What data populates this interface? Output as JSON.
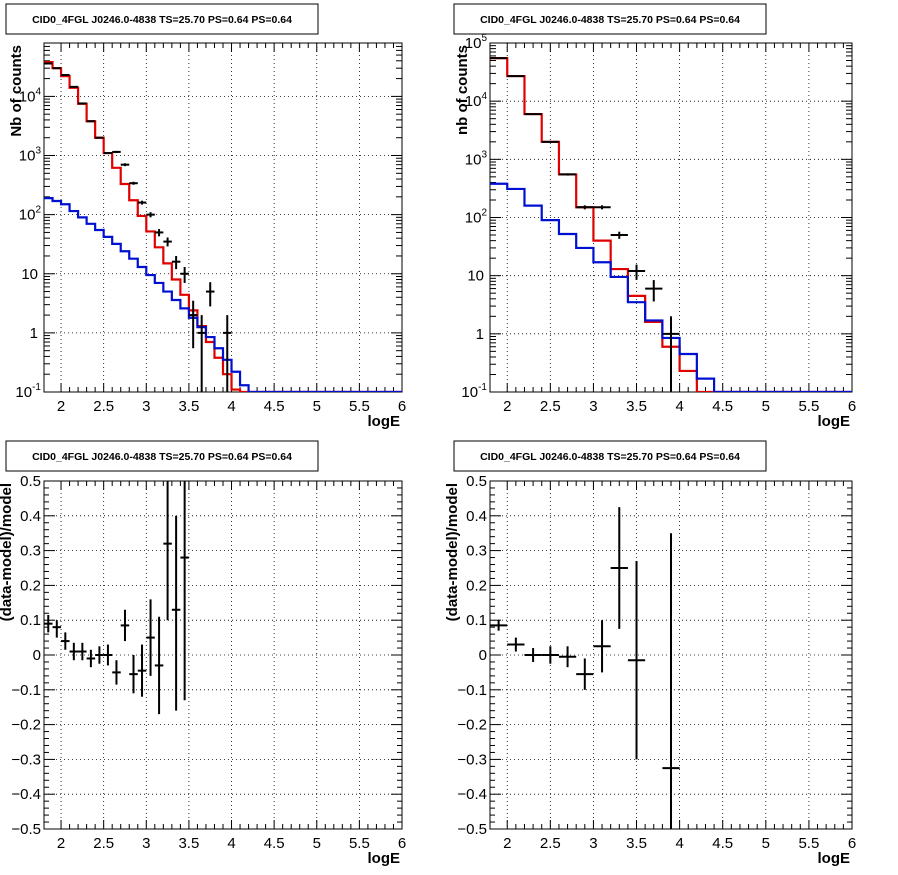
{
  "page": {
    "background": "#ffffff"
  },
  "colors": {
    "data": "#000000",
    "total_model": "#e00000",
    "source_model": "#0010d0",
    "grid": "#000000"
  },
  "chart_data": [
    {
      "id": "counts-left",
      "type": "step-histogram",
      "title": "CID0_4FGL J0246.0-4838 TS=25.70 PS=0.64 PS=0.64",
      "xlabel": "logE",
      "ylabel": "Nb of counts",
      "xlim": [
        1.8,
        6.0
      ],
      "ylim": [
        0.1,
        80000
      ],
      "log_y": true,
      "grid": true,
      "x_ticks": [
        "2",
        "2.5",
        "3",
        "3.5",
        "4",
        "4.5",
        "5",
        "5.5",
        "6"
      ],
      "y_ticks": [
        "10^-1",
        "1",
        "10",
        "10^2",
        "10^3",
        "10^4"
      ],
      "bin_edges": [
        1.8,
        1.9,
        2.0,
        2.1,
        2.2,
        2.3,
        2.4,
        2.5,
        2.6,
        2.7,
        2.8,
        2.9,
        3.0,
        3.1,
        3.2,
        3.3,
        3.4,
        3.5,
        3.6,
        3.7,
        3.8,
        3.9,
        4.0,
        4.1,
        4.2,
        4.3,
        4.4,
        4.5,
        4.6,
        4.7,
        4.8,
        4.9,
        5.0,
        5.1,
        5.2,
        5.3,
        5.4,
        5.5,
        5.6,
        5.7,
        5.8,
        5.9,
        6.0
      ],
      "series": [
        {
          "role": "total_model",
          "color": "#e00000",
          "values": [
            38000,
            30000,
            22000,
            14000,
            7500,
            3800,
            2000,
            1100,
            620,
            330,
            175,
            95,
            52,
            28,
            15,
            8,
            4.4,
            2.4,
            1.3,
            0.7,
            0.38,
            0.2,
            0.11,
            0.1,
            0.1,
            0.1,
            0.1,
            0.1,
            0.1,
            0.1,
            0.1,
            0.1,
            0.1,
            0.1,
            0.1,
            0.1,
            0.1,
            0.1,
            0.1,
            0.1,
            0.1,
            0.1
          ]
        },
        {
          "role": "source_model",
          "color": "#0010d0",
          "values": [
            190,
            170,
            150,
            115,
            90,
            70,
            55,
            42,
            32,
            24,
            18,
            13,
            9.5,
            7,
            5,
            3.6,
            2.6,
            1.8,
            1.25,
            0.85,
            0.55,
            0.35,
            0.22,
            0.13,
            0.1,
            0.1,
            0.1,
            0.1,
            0.1,
            0.1,
            0.1,
            0.1,
            0.1,
            0.1,
            0.1,
            0.1,
            0.1,
            0.1,
            0.1,
            0.1,
            0.1,
            0.1
          ]
        }
      ],
      "points": [
        {
          "x": 1.85,
          "y": 36000,
          "ylo": 35500,
          "yhi": 36500,
          "xerr": 0.05
        },
        {
          "x": 1.95,
          "y": 30000,
          "ylo": 29600,
          "yhi": 30400,
          "xerr": 0.05
        },
        {
          "x": 2.05,
          "y": 23000,
          "ylo": 22600,
          "yhi": 23400,
          "xerr": 0.05
        },
        {
          "x": 2.15,
          "y": 14500,
          "ylo": 14200,
          "yhi": 14800,
          "xerr": 0.05
        },
        {
          "x": 2.25,
          "y": 7600,
          "ylo": 7400,
          "yhi": 7800,
          "xerr": 0.05
        },
        {
          "x": 2.35,
          "y": 3800,
          "ylo": 3700,
          "yhi": 3900,
          "xerr": 0.05
        },
        {
          "x": 2.45,
          "y": 2000,
          "ylo": 1950,
          "yhi": 2050,
          "xerr": 0.05
        },
        {
          "x": 2.55,
          "y": 1100,
          "ylo": 1060,
          "yhi": 1140,
          "xerr": 0.05
        },
        {
          "x": 2.65,
          "y": 1150,
          "ylo": 1100,
          "yhi": 1200,
          "xerr": 0.05
        },
        {
          "x": 2.75,
          "y": 700,
          "ylo": 660,
          "yhi": 740,
          "xerr": 0.05
        },
        {
          "x": 2.85,
          "y": 340,
          "ylo": 320,
          "yhi": 360,
          "xerr": 0.05
        },
        {
          "x": 2.95,
          "y": 160,
          "ylo": 148,
          "yhi": 172,
          "xerr": 0.05
        },
        {
          "x": 3.05,
          "y": 100,
          "ylo": 90,
          "yhi": 110,
          "xerr": 0.05
        },
        {
          "x": 3.15,
          "y": 50,
          "ylo": 43,
          "yhi": 57,
          "xerr": 0.05
        },
        {
          "x": 3.25,
          "y": 35,
          "ylo": 29,
          "yhi": 41,
          "xerr": 0.05
        },
        {
          "x": 3.35,
          "y": 16,
          "ylo": 12,
          "yhi": 20,
          "xerr": 0.05
        },
        {
          "x": 3.45,
          "y": 10,
          "ylo": 7,
          "yhi": 13,
          "xerr": 0.05
        },
        {
          "x": 3.55,
          "y": 2,
          "ylo": 0.55,
          "yhi": 3.5,
          "xerr": 0.05
        },
        {
          "x": 3.65,
          "y": 1,
          "ylo": 0.1,
          "yhi": 2,
          "xerr": 0.05
        },
        {
          "x": 3.75,
          "y": 5,
          "ylo": 2.8,
          "yhi": 7.2,
          "xerr": 0.05
        },
        {
          "x": 3.95,
          "y": 1,
          "ylo": 0.1,
          "yhi": 2,
          "xerr": 0.05
        }
      ]
    },
    {
      "id": "counts-right",
      "type": "step-histogram",
      "title": "CID0_4FGL J0246.0-4838 TS=25.70 PS=0.64 PS=0.64",
      "xlabel": "logE",
      "ylabel": "nb of counts",
      "xlim": [
        1.8,
        6.0
      ],
      "ylim": [
        0.1,
        100000
      ],
      "log_y": true,
      "grid": true,
      "x_ticks": [
        "2",
        "2.5",
        "3",
        "3.5",
        "4",
        "4.5",
        "5",
        "5.5",
        "6"
      ],
      "y_ticks": [
        "10^-1",
        "1",
        "10",
        "10^2",
        "10^3",
        "10^4",
        "10^5"
      ],
      "bin_edges": [
        1.8,
        2.0,
        2.2,
        2.4,
        2.6,
        2.8,
        3.0,
        3.2,
        3.4,
        3.6,
        3.8,
        4.0,
        4.2,
        4.4,
        4.6,
        4.8,
        5.0,
        5.2,
        5.4,
        5.6,
        5.8,
        6.0
      ],
      "series": [
        {
          "role": "total_model",
          "color": "#e00000",
          "values": [
            55000,
            27000,
            6000,
            2000,
            550,
            150,
            40,
            13,
            4.5,
            1.6,
            0.6,
            0.23,
            0.1,
            0.1,
            0.1,
            0.1,
            0.1,
            0.1,
            0.1,
            0.1,
            0.1
          ]
        },
        {
          "role": "source_model",
          "color": "#0010d0",
          "values": [
            380,
            310,
            160,
            90,
            52,
            30,
            17,
            9.5,
            3.5,
            1.7,
            0.85,
            0.45,
            0.17,
            0.1,
            0.1,
            0.1,
            0.1,
            0.1,
            0.1,
            0.1,
            0.1
          ]
        }
      ],
      "points": [
        {
          "x": 1.9,
          "y": 55000,
          "ylo": 54500,
          "yhi": 55500,
          "xerr": 0.1
        },
        {
          "x": 2.1,
          "y": 27000,
          "ylo": 26700,
          "yhi": 27300,
          "xerr": 0.1
        },
        {
          "x": 2.3,
          "y": 6000,
          "ylo": 5900,
          "yhi": 6100,
          "xerr": 0.1
        },
        {
          "x": 2.5,
          "y": 2000,
          "ylo": 1950,
          "yhi": 2050,
          "xerr": 0.1
        },
        {
          "x": 2.7,
          "y": 550,
          "ylo": 525,
          "yhi": 575,
          "xerr": 0.1
        },
        {
          "x": 2.9,
          "y": 150,
          "ylo": 138,
          "yhi": 162,
          "xerr": 0.1
        },
        {
          "x": 3.1,
          "y": 150,
          "ylo": 138,
          "yhi": 162,
          "xerr": 0.1
        },
        {
          "x": 3.3,
          "y": 50,
          "ylo": 43,
          "yhi": 57,
          "xerr": 0.1
        },
        {
          "x": 3.5,
          "y": 12,
          "ylo": 8.5,
          "yhi": 15.5,
          "xerr": 0.1
        },
        {
          "x": 3.7,
          "y": 6,
          "ylo": 3.6,
          "yhi": 8.4,
          "xerr": 0.1
        },
        {
          "x": 3.9,
          "y": 1,
          "ylo": 0.1,
          "yhi": 2,
          "xerr": 0.1
        }
      ]
    },
    {
      "id": "residuals-left",
      "type": "scatter-errorbars",
      "title": "CID0_4FGL J0246.0-4838 TS=25.70 PS=0.64 PS=0.64",
      "xlabel": "logE",
      "ylabel": "(data-model)/model",
      "xlim": [
        1.8,
        6.0
      ],
      "ylim": [
        -0.5,
        0.5
      ],
      "grid": true,
      "x_ticks": [
        "2",
        "2.5",
        "3",
        "3.5",
        "4",
        "4.5",
        "5",
        "5.5",
        "6"
      ],
      "y_ticks": [
        "−0.5",
        "−0.4",
        "−0.3",
        "−0.2",
        "−0.1",
        "0",
        "0.1",
        "0.2",
        "0.3",
        "0.4",
        "0.5"
      ],
      "points": [
        {
          "x": 1.85,
          "y": 0.09,
          "ylo": 0.065,
          "yhi": 0.115,
          "xerr": 0.05
        },
        {
          "x": 1.95,
          "y": 0.08,
          "ylo": 0.05,
          "yhi": 0.1,
          "xerr": 0.05
        },
        {
          "x": 2.05,
          "y": 0.04,
          "ylo": 0.015,
          "yhi": 0.065,
          "xerr": 0.05
        },
        {
          "x": 2.15,
          "y": 0.01,
          "ylo": -0.015,
          "yhi": 0.035,
          "xerr": 0.05
        },
        {
          "x": 2.25,
          "y": 0.01,
          "ylo": -0.015,
          "yhi": 0.035,
          "xerr": 0.05
        },
        {
          "x": 2.35,
          "y": -0.01,
          "ylo": -0.035,
          "yhi": 0.015,
          "xerr": 0.05
        },
        {
          "x": 2.45,
          "y": 0.0,
          "ylo": -0.025,
          "yhi": 0.025,
          "xerr": 0.05
        },
        {
          "x": 2.55,
          "y": 0.0,
          "ylo": -0.03,
          "yhi": 0.03,
          "xerr": 0.05
        },
        {
          "x": 2.65,
          "y": -0.05,
          "ylo": -0.085,
          "yhi": -0.015,
          "xerr": 0.05
        },
        {
          "x": 2.75,
          "y": 0.085,
          "ylo": 0.04,
          "yhi": 0.13,
          "xerr": 0.05
        },
        {
          "x": 2.85,
          "y": -0.055,
          "ylo": -0.11,
          "yhi": 0.0,
          "xerr": 0.05
        },
        {
          "x": 2.95,
          "y": -0.045,
          "ylo": -0.12,
          "yhi": 0.03,
          "xerr": 0.05
        },
        {
          "x": 3.05,
          "y": 0.05,
          "ylo": -0.06,
          "yhi": 0.16,
          "xerr": 0.05
        },
        {
          "x": 3.15,
          "y": -0.03,
          "ylo": -0.17,
          "yhi": 0.11,
          "xerr": 0.05
        },
        {
          "x": 3.25,
          "y": 0.32,
          "ylo": 0.1,
          "yhi": 0.5,
          "xerr": 0.05
        },
        {
          "x": 3.35,
          "y": 0.13,
          "ylo": -0.16,
          "yhi": 0.4,
          "xerr": 0.05
        },
        {
          "x": 3.45,
          "y": 0.28,
          "ylo": -0.13,
          "yhi": 0.5,
          "xerr": 0.05
        }
      ]
    },
    {
      "id": "residuals-right",
      "type": "scatter-errorbars",
      "title": "CID0_4FGL J0246.0-4838 TS=25.70 PS=0.64 PS=0.64",
      "xlabel": "logE",
      "ylabel": "(data-model)/model",
      "xlim": [
        1.8,
        6.0
      ],
      "ylim": [
        -0.5,
        0.5
      ],
      "grid": true,
      "x_ticks": [
        "2",
        "2.5",
        "3",
        "3.5",
        "4",
        "4.5",
        "5",
        "5.5",
        "6"
      ],
      "y_ticks": [
        "−0.5",
        "−0.4",
        "−0.3",
        "−0.2",
        "−0.1",
        "0",
        "0.1",
        "0.2",
        "0.3",
        "0.4",
        "0.5"
      ],
      "points": [
        {
          "x": 1.9,
          "y": 0.085,
          "ylo": 0.07,
          "yhi": 0.1,
          "xerr": 0.1
        },
        {
          "x": 2.1,
          "y": 0.03,
          "ylo": 0.01,
          "yhi": 0.05,
          "xerr": 0.1
        },
        {
          "x": 2.3,
          "y": 0.0,
          "ylo": -0.02,
          "yhi": 0.02,
          "xerr": 0.1
        },
        {
          "x": 2.5,
          "y": 0.0,
          "ylo": -0.025,
          "yhi": 0.025,
          "xerr": 0.1
        },
        {
          "x": 2.7,
          "y": -0.005,
          "ylo": -0.035,
          "yhi": 0.025,
          "xerr": 0.1
        },
        {
          "x": 2.9,
          "y": -0.055,
          "ylo": -0.1,
          "yhi": -0.01,
          "xerr": 0.1
        },
        {
          "x": 3.1,
          "y": 0.025,
          "ylo": -0.05,
          "yhi": 0.1,
          "xerr": 0.1
        },
        {
          "x": 3.3,
          "y": 0.25,
          "ylo": 0.075,
          "yhi": 0.425,
          "xerr": 0.1
        },
        {
          "x": 3.5,
          "y": -0.015,
          "ylo": -0.3,
          "yhi": 0.27,
          "xerr": 0.1
        },
        {
          "x": 3.9,
          "y": -0.325,
          "ylo": -0.5,
          "yhi": 0.35,
          "xerr": 0.1
        }
      ]
    }
  ]
}
